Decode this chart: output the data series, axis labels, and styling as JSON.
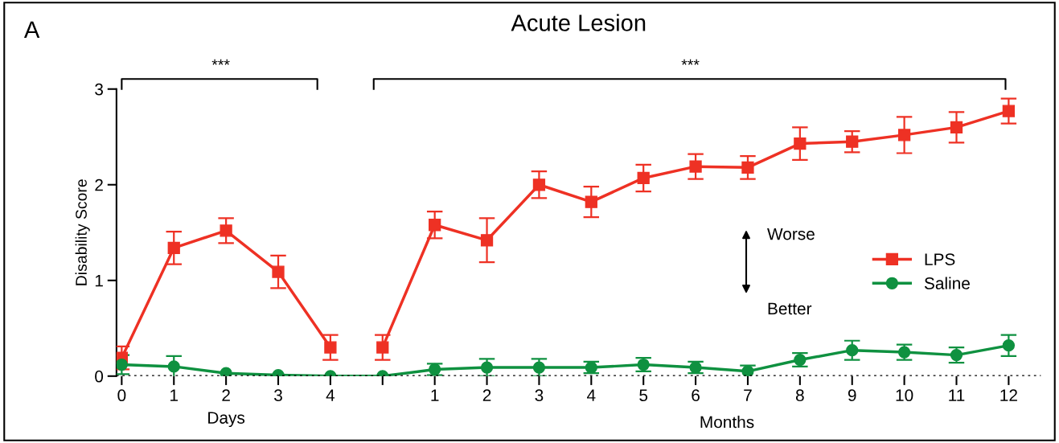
{
  "chart_data": {
    "type": "line",
    "title": "Acute Lesion",
    "ylabel": "Disability Score",
    "xlabel": "Months",
    "annotations": [
      "A",
      "Days",
      "***",
      "***",
      "Worse",
      "Better"
    ],
    "categories": [
      "0",
      "1",
      "2",
      "3",
      "4",
      null,
      "1",
      "2",
      "3",
      "4",
      "5",
      "6",
      "7",
      "8",
      "9",
      "10",
      "11",
      "12"
    ],
    "series": [
      {
        "name": "LPS",
        "color": "#ee3124",
        "marker": "square",
        "values": [
          0.19,
          1.34,
          1.52,
          1.09,
          0.3,
          null,
          null,
          null,
          null,
          null,
          null,
          null,
          null,
          null,
          null,
          null,
          null,
          null
        ],
        "errors": [
          0.12,
          0.17,
          0.13,
          0.17,
          0.13,
          null,
          null,
          null,
          null,
          null,
          null,
          null,
          null,
          null,
          null,
          null,
          null,
          null
        ]
      },
      {
        "color": "#ee3124",
        "marker": "square",
        "values": [
          null,
          null,
          null,
          null,
          null,
          0.3,
          1.58,
          1.42,
          2.0,
          1.82,
          2.07,
          2.19,
          2.18,
          2.43,
          2.45,
          2.52,
          2.6,
          2.77
        ],
        "errors": [
          null,
          null,
          null,
          null,
          null,
          0.13,
          0.14,
          0.23,
          0.14,
          0.16,
          0.14,
          0.13,
          0.12,
          0.17,
          0.11,
          0.19,
          0.16,
          0.13
        ]
      },
      {
        "name": "Saline",
        "color": "#0f9140",
        "marker": "circle",
        "values": [
          0.12,
          0.1,
          0.03,
          0.01,
          0,
          0,
          0.07,
          0.09,
          0.09,
          0.09,
          0.12,
          0.09,
          0.05,
          0.17,
          0.27,
          0.25,
          0.22,
          0.32
        ],
        "errors": [
          0.1,
          0.11,
          null,
          null,
          null,
          null,
          0.06,
          0.09,
          0.09,
          0.06,
          0.07,
          0.06,
          0.06,
          0.07,
          0.1,
          0.08,
          0.08,
          0.11
        ]
      }
    ],
    "ylim": [
      0,
      3
    ],
    "yticks": [
      0,
      1,
      2,
      3
    ],
    "ref_lines": [
      {
        "axis": "y",
        "value": 0,
        "color": "#000000",
        "line_style": "dotted"
      }
    ],
    "grid": false,
    "legend": "right",
    "line_style": "solid"
  }
}
